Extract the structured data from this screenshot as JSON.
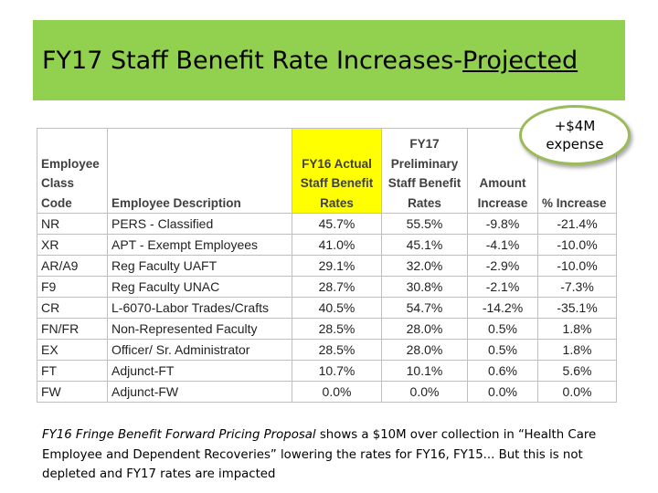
{
  "slide": {
    "title_main": "FY17 Staff Benefit Rate Increases-",
    "title_underlined": "Projected",
    "callout": {
      "line1": "+$4M",
      "line2": "expense"
    },
    "highlight_color": "#ffff00",
    "banner_color": "#92d050"
  },
  "table": {
    "headers": {
      "code": [
        "Employee",
        "Class",
        "Code"
      ],
      "description": "Employee Description",
      "fy16": [
        "FY16  Actual",
        "Staff Benefit",
        "Rates"
      ],
      "fy17": [
        "FY17",
        "Preliminary",
        "Staff Benefit",
        "Rates"
      ],
      "amount": [
        "Amount",
        "Increase"
      ],
      "pct": "% Increase"
    },
    "rows": [
      {
        "code": "NR",
        "description": "PERS - Classified",
        "fy16": "45.7%",
        "fy17": "55.5%",
        "amount": "-9.8%",
        "pct": "-21.4%"
      },
      {
        "code": "XR",
        "description": "APT - Exempt Employees",
        "fy16": "41.0%",
        "fy17": "45.1%",
        "amount": "-4.1%",
        "pct": "-10.0%"
      },
      {
        "code": "AR/A9",
        "description": "Reg Faculty UAFT",
        "fy16": "29.1%",
        "fy17": "32.0%",
        "amount": "-2.9%",
        "pct": "-10.0%"
      },
      {
        "code": "F9",
        "description": "Reg Faculty UNAC",
        "fy16": "28.7%",
        "fy17": "30.8%",
        "amount": "-2.1%",
        "pct": "-7.3%"
      },
      {
        "code": "CR",
        "description": "L-6070-Labor Trades/Crafts",
        "fy16": "40.5%",
        "fy17": "54.7%",
        "amount": "-14.2%",
        "pct": "-35.1%"
      },
      {
        "code": "FN/FR",
        "description": "Non-Represented Faculty",
        "fy16": "28.5%",
        "fy17": "28.0%",
        "amount": "0.5%",
        "pct": "1.8%"
      },
      {
        "code": "EX",
        "description": "Officer/ Sr. Administrator",
        "fy16": "28.5%",
        "fy17": "28.0%",
        "amount": "0.5%",
        "pct": "1.8%"
      },
      {
        "code": "FT",
        "description": "Adjunct-FT",
        "fy16": "10.7%",
        "fy17": "10.1%",
        "amount": "0.6%",
        "pct": "5.6%"
      },
      {
        "code": "FW",
        "description": "Adjunct-FW",
        "fy16": "0.0%",
        "fy17": "0.0%",
        "amount": "0.0%",
        "pct": "0.0%"
      }
    ]
  },
  "note": {
    "italic_part": "FY16 Fringe Benefit Forward Pricing Proposal",
    "rest": " shows a $10M over collection in “Health Care Employee and Dependent Recoveries” lowering the rates for FY16, FY15... But this is not depleted and FY17 rates are impacted"
  }
}
